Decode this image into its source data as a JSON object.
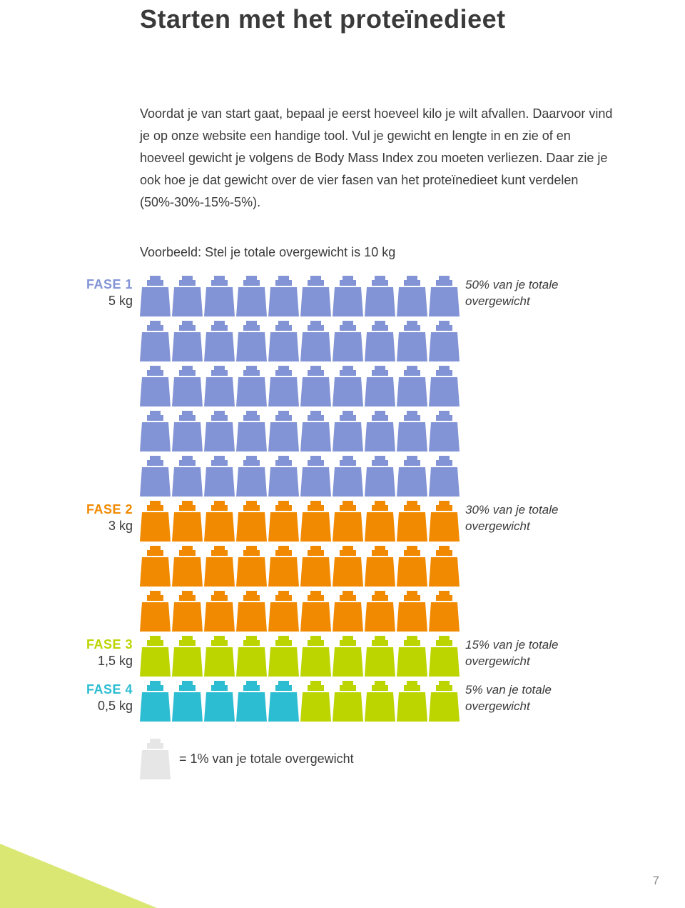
{
  "title": "Starten met het proteïnedieet",
  "intro": "Voordat je van start gaat, bepaal je eerst hoeveel kilo je wilt afvallen. Daarvoor vind je op onze website een handige tool. Vul je gewicht en lengte in en zie of en hoeveel gewicht je volgens de Body Mass Index zou moeten verliezen. Daar zie je ook hoe je dat gewicht over de vier fasen van het proteïnedieet kunt verdelen (50%-30%-15%-5%).",
  "example_label": "Voorbeeld: Stel je totale overgewicht is 10 kg",
  "colors": {
    "phase1": "#8294d6",
    "phase2": "#f18a00",
    "phase3": "#bcd400",
    "phase4": "#2cbdd2",
    "legend": "#e6e6e6",
    "corner": "#bcd400",
    "text": "#3a3a3a"
  },
  "phases": [
    {
      "id": "phase1",
      "name": "FASE 1",
      "kg": "5 kg",
      "name_color": "#8294d6",
      "rows": 5,
      "per_row": 10,
      "row_colors": [
        "#8294d6",
        "#8294d6",
        "#8294d6",
        "#8294d6",
        "#8294d6",
        "#8294d6",
        "#8294d6",
        "#8294d6",
        "#8294d6",
        "#8294d6"
      ],
      "desc": "50% van je totale overgewicht"
    },
    {
      "id": "phase2",
      "name": "FASE 2",
      "kg": "3 kg",
      "name_color": "#f18a00",
      "rows": 3,
      "per_row": 10,
      "row_colors": [
        "#f18a00",
        "#f18a00",
        "#f18a00",
        "#f18a00",
        "#f18a00",
        "#f18a00",
        "#f18a00",
        "#f18a00",
        "#f18a00",
        "#f18a00"
      ],
      "desc": "30% van je totale overgewicht"
    },
    {
      "id": "phase3",
      "name": "FASE 3",
      "kg": "1,5 kg",
      "name_color": "#bcd400",
      "rows": 1,
      "per_row": 10,
      "row_colors": [
        "#bcd400",
        "#bcd400",
        "#bcd400",
        "#bcd400",
        "#bcd400",
        "#bcd400",
        "#bcd400",
        "#bcd400",
        "#bcd400",
        "#bcd400"
      ],
      "desc": "15% van je totale overgewicht"
    },
    {
      "id": "phase4",
      "name": "FASE 4",
      "kg": "0,5 kg",
      "name_color": "#2cbdd2",
      "rows": 1,
      "per_row": 10,
      "row_colors": [
        "#2cbdd2",
        "#2cbdd2",
        "#2cbdd2",
        "#2cbdd2",
        "#2cbdd2",
        "#bcd400",
        "#bcd400",
        "#bcd400",
        "#bcd400",
        "#bcd400"
      ],
      "desc": "5% van je totale overgewicht"
    }
  ],
  "legend_text": "= 1% van je totale overgewicht",
  "page_number": "7"
}
